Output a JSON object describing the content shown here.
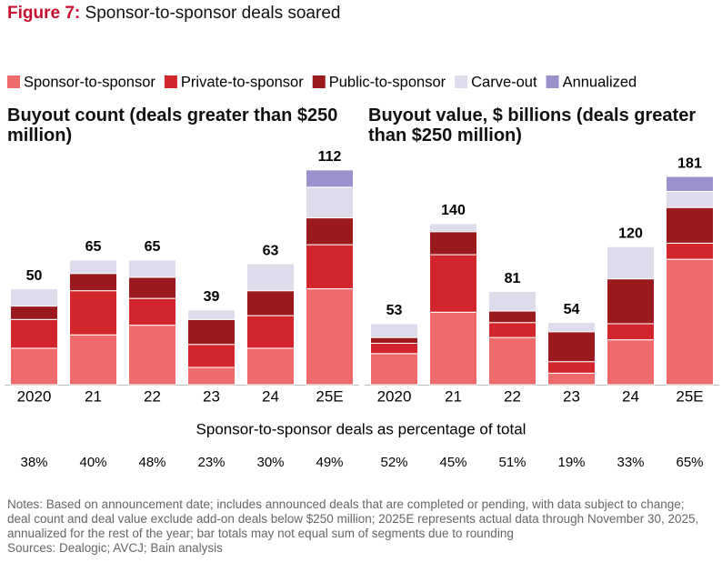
{
  "figure_label": "Figure 7:",
  "figure_title": "Sponsor-to-sponsor deals soared",
  "legend": [
    {
      "name": "Sponsor-to-sponsor",
      "color": "#ef6b6b"
    },
    {
      "name": "Private-to-sponsor",
      "color": "#d3262c"
    },
    {
      "name": "Public-to-sponsor",
      "color": "#9a1a1e"
    },
    {
      "name": "Carve-out",
      "color": "#dddbec"
    },
    {
      "name": "Annualized",
      "color": "#9a92cc"
    }
  ],
  "chart_data": [
    {
      "type": "bar",
      "stacked": true,
      "title": "Buyout count (deals greater than $250 million)",
      "categories": [
        "2020",
        "21",
        "22",
        "23",
        "24",
        "25E"
      ],
      "totals": [
        50,
        65,
        65,
        39,
        63,
        112
      ],
      "ylim": [
        0,
        120
      ],
      "series": [
        {
          "values": [
            19,
            26,
            31,
            9,
            19,
            50
          ]
        },
        {
          "values": [
            15,
            23,
            14,
            12,
            17,
            23
          ]
        },
        {
          "values": [
            7,
            9,
            11,
            13,
            13,
            14
          ]
        },
        {
          "values": [
            9,
            7,
            9,
            5,
            14,
            16
          ]
        },
        {
          "values": [
            null,
            null,
            null,
            null,
            null,
            9
          ]
        }
      ]
    },
    {
      "type": "bar",
      "stacked": true,
      "title": "Buyout value, $ billions (deals greater than $250 million)",
      "categories": [
        "2020",
        "21",
        "22",
        "23",
        "24",
        "25E"
      ],
      "totals": [
        53,
        140,
        81,
        54,
        120,
        181
      ],
      "ylim": [
        0,
        200
      ],
      "series": [
        {
          "values": [
            27,
            63,
            41,
            10,
            39,
            109
          ]
        },
        {
          "values": [
            9,
            50,
            13,
            10,
            14,
            14
          ]
        },
        {
          "values": [
            5,
            20,
            10,
            26,
            39,
            31
          ]
        },
        {
          "values": [
            12,
            7,
            17,
            8,
            28,
            14
          ]
        },
        {
          "values": [
            null,
            null,
            null,
            null,
            null,
            13
          ]
        }
      ]
    }
  ],
  "share": {
    "title": "Sponsor-to-sponsor deals as percentage of total",
    "values": [
      38,
      40,
      48,
      23,
      30,
      49,
      52,
      45,
      51,
      19,
      33,
      65
    ],
    "value_labels": [
      "38%",
      "40%",
      "48%",
      "23%",
      "30%",
      "49%",
      "52%",
      "45%",
      "51%",
      "19%",
      "33%",
      "65%"
    ]
  },
  "notes": "Notes: Based on announcement date; includes announced deals that are completed or pending, with data subject to change; deal count and deal value exclude add-on deals below $250 million; 2025E represents actual data through November 30, 2025, annualized for the rest of the year; bar totals may not equal sum of segments due to rounding",
  "sources": "Sources: Dealogic; AVCJ; Bain analysis"
}
